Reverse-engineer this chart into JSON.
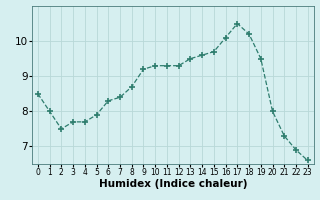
{
  "x": [
    0,
    1,
    2,
    3,
    4,
    5,
    6,
    7,
    8,
    9,
    10,
    11,
    12,
    13,
    14,
    15,
    16,
    17,
    18,
    19,
    20,
    21,
    22,
    23
  ],
  "y": [
    8.5,
    8.0,
    7.5,
    7.7,
    7.7,
    7.9,
    8.3,
    8.4,
    8.7,
    9.2,
    9.3,
    9.3,
    9.3,
    9.5,
    9.6,
    9.7,
    10.1,
    10.5,
    10.2,
    9.5,
    8.0,
    7.3,
    6.9,
    6.6
  ],
  "line_color": "#2e7d6e",
  "marker": "+",
  "marker_size": 4,
  "bg_color": "#d6eff0",
  "grid_color": "#b8d8d8",
  "xlabel": "Humidex (Indice chaleur)",
  "xlabel_fontsize": 7.5,
  "ylim": [
    6.5,
    11.0
  ],
  "xlim": [
    -0.5,
    23.5
  ],
  "yticks": [
    7,
    8,
    9,
    10
  ],
  "xticks": [
    0,
    1,
    2,
    3,
    4,
    5,
    6,
    7,
    8,
    9,
    10,
    11,
    12,
    13,
    14,
    15,
    16,
    17,
    18,
    19,
    20,
    21,
    22,
    23
  ],
  "xtick_fontsize": 5.5,
  "ytick_fontsize": 7.5
}
